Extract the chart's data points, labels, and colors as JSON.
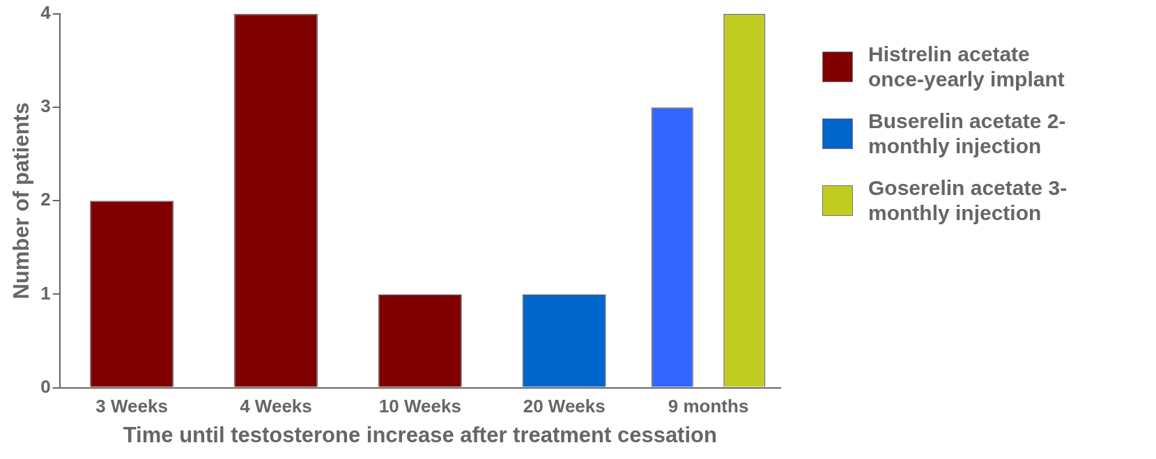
{
  "chart_data": {
    "type": "bar",
    "xlabel": "Time until testosterone increase after treatment cessation",
    "ylabel": "Number of patients",
    "categories": [
      "3 Weeks",
      "4 Weeks",
      "10 Weeks",
      "20 Weeks",
      "9 months"
    ],
    "series": [
      {
        "name": "Histrelin acetate once-yearly implant",
        "color": "#800000",
        "values": [
          2,
          4,
          1,
          null,
          null
        ]
      },
      {
        "name": "Buserelin acetate 2-monthly injection",
        "color": "#0066cc",
        "colors": [
          "#0066cc",
          "#0066cc",
          "#0066cc",
          "#0066cc",
          "#3366ff"
        ],
        "values": [
          null,
          null,
          null,
          1,
          3
        ]
      },
      {
        "name": "Goserelin acetate 3-monthly injection",
        "color": "#c0cc22",
        "values": [
          null,
          null,
          null,
          null,
          4
        ]
      }
    ],
    "ylim": [
      0,
      4
    ],
    "yticks": [
      0,
      1,
      2,
      3,
      4
    ],
    "grid": false,
    "legend": "right"
  }
}
